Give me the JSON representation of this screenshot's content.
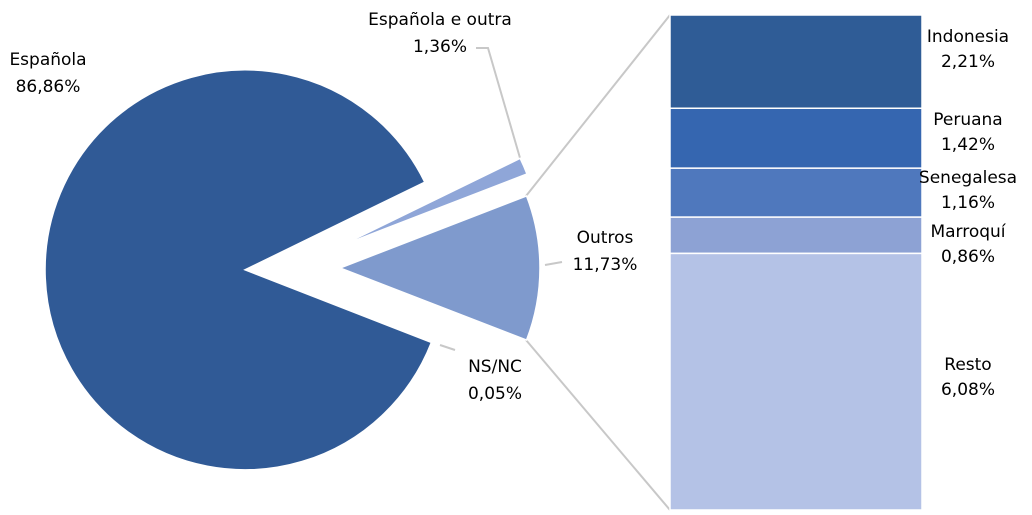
{
  "chart_data": [
    {
      "type": "pie",
      "categories": [
        "Española",
        "Española e outra",
        "Outros",
        "NS/NC"
      ],
      "values": [
        86.86,
        1.36,
        11.73,
        0.05
      ],
      "value_labels": [
        "86,86%",
        "1,36%",
        "11,73%",
        "0,05%"
      ],
      "colors": [
        "#305a96",
        "#8fa6d8",
        "#7f9acd",
        "#c8d3ee"
      ]
    },
    {
      "type": "stacked_bar",
      "categories": [
        "Indonesia",
        "Peruana",
        "Senegalesa",
        "Marroquí",
        "Resto"
      ],
      "values": [
        2.21,
        1.42,
        1.16,
        0.86,
        6.08
      ],
      "value_labels": [
        "2,21%",
        "1,42%",
        "1,16%",
        "0,86%",
        "6,08%"
      ],
      "colors": [
        "#2f5c96",
        "#3566b0",
        "#4f78bd",
        "#8da2d4",
        "#b4c2e6"
      ]
    }
  ]
}
